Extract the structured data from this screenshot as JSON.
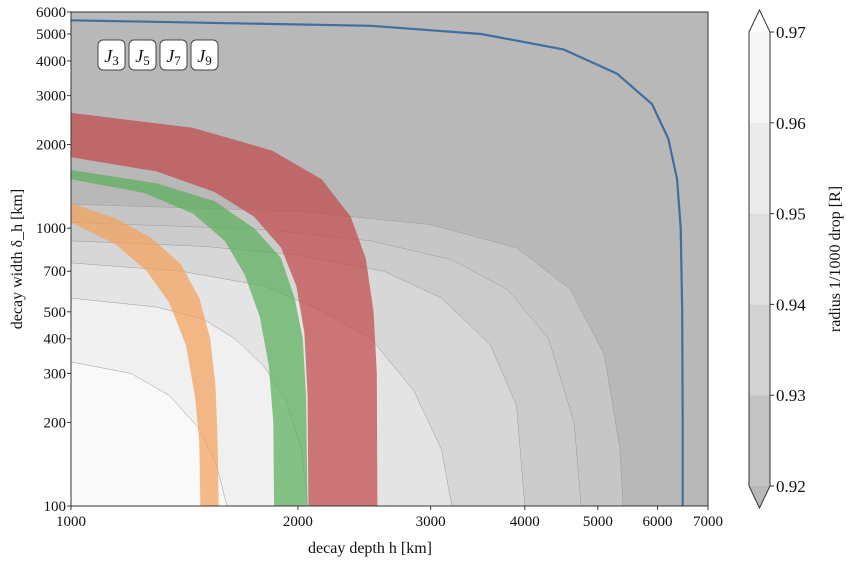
{
  "chart_data": {
    "type": "contour",
    "xlabel": "decay depth h [km]",
    "ylabel": "decay width δ_h [km]",
    "x_scale": "log",
    "y_scale": "log",
    "xlim": [
      1000,
      7000
    ],
    "ylim": [
      100,
      6000
    ],
    "x_ticks": [
      1000,
      2000,
      3000,
      4000,
      5000,
      6000,
      7000
    ],
    "y_ticks": [
      100,
      200,
      300,
      400,
      500,
      700,
      1000,
      2000,
      3000,
      4000,
      5000,
      6000
    ],
    "colorbar": {
      "label": "radius 1/1000 drop [R]",
      "levels": [
        0.92,
        0.93,
        0.94,
        0.95,
        0.96,
        0.97
      ],
      "ticks": [
        "0.92",
        "0.93",
        "0.94",
        "0.95",
        "0.96",
        "0.97"
      ],
      "colors": [
        "#c3c3c3",
        "#d2d2d2",
        "#dfdfdf",
        "#ebebeb",
        "#f6f6f6"
      ],
      "extend": "both",
      "extend_low_color": "#b8b8b8",
      "extend_high_color": "#ffffff"
    },
    "contour_fills": [
      {
        "color": "#f9f9f9",
        "points": [
          [
            1000,
            330
          ],
          [
            1200,
            300
          ],
          [
            1350,
            250
          ],
          [
            1480,
            190
          ],
          [
            1560,
            140
          ],
          [
            1610,
            100
          ]
        ]
      },
      {
        "color": "#f0f0f0",
        "points": [
          [
            1000,
            560
          ],
          [
            1300,
            520
          ],
          [
            1500,
            470
          ],
          [
            1650,
            400
          ],
          [
            1800,
            320
          ],
          [
            1930,
            240
          ],
          [
            2020,
            160
          ],
          [
            2060,
            100
          ]
        ]
      },
      {
        "color": "#e4e4e4",
        "points": [
          [
            1000,
            750
          ],
          [
            1400,
            700
          ],
          [
            1800,
            620
          ],
          [
            2100,
            520
          ],
          [
            2500,
            400
          ],
          [
            2850,
            260
          ],
          [
            3100,
            160
          ],
          [
            3200,
            100
          ]
        ]
      },
      {
        "color": "#d7d7d7",
        "points": [
          [
            1000,
            900
          ],
          [
            1500,
            860
          ],
          [
            2000,
            800
          ],
          [
            2600,
            700
          ],
          [
            3100,
            560
          ],
          [
            3600,
            380
          ],
          [
            3900,
            230
          ],
          [
            4000,
            100
          ]
        ]
      },
      {
        "color": "#cbcbcb",
        "points": [
          [
            1000,
            1050
          ],
          [
            1800,
            990
          ],
          [
            2500,
            900
          ],
          [
            3200,
            770
          ],
          [
            3800,
            600
          ],
          [
            4300,
            400
          ],
          [
            4650,
            200
          ],
          [
            4750,
            100
          ]
        ]
      },
      {
        "color": "#c6c6c6",
        "points": [
          [
            1000,
            1220
          ],
          [
            2000,
            1150
          ],
          [
            3000,
            1030
          ],
          [
            3900,
            850
          ],
          [
            4600,
            600
          ],
          [
            5100,
            350
          ],
          [
            5350,
            160
          ],
          [
            5400,
            100
          ]
        ]
      }
    ],
    "series": [
      {
        "name": "J3",
        "color": "#3d6fa0",
        "kind": "line",
        "points": [
          [
            1000,
            5600
          ],
          [
            2500,
            5350
          ],
          [
            3500,
            5000
          ],
          [
            4500,
            4400
          ],
          [
            5300,
            3600
          ],
          [
            5900,
            2800
          ],
          [
            6200,
            2100
          ],
          [
            6370,
            1500
          ],
          [
            6440,
            1000
          ],
          [
            6470,
            500
          ],
          [
            6480,
            200
          ],
          [
            6480,
            100
          ]
        ]
      },
      {
        "name": "J5",
        "color": "#f2a15a",
        "kind": "band",
        "outer": [
          [
            1000,
            1230
          ],
          [
            1150,
            1080
          ],
          [
            1280,
            920
          ],
          [
            1400,
            740
          ],
          [
            1480,
            560
          ],
          [
            1530,
            400
          ],
          [
            1555,
            270
          ],
          [
            1565,
            170
          ],
          [
            1570,
            100
          ]
        ],
        "inner": [
          [
            1000,
            1050
          ],
          [
            1150,
            870
          ],
          [
            1260,
            700
          ],
          [
            1350,
            540
          ],
          [
            1420,
            380
          ],
          [
            1460,
            250
          ],
          [
            1480,
            170
          ],
          [
            1485,
            100
          ]
        ]
      },
      {
        "name": "J7",
        "color": "#5aaf5a",
        "kind": "band",
        "outer": [
          [
            1000,
            1620
          ],
          [
            1300,
            1450
          ],
          [
            1550,
            1250
          ],
          [
            1750,
            1000
          ],
          [
            1900,
            780
          ],
          [
            1980,
            560
          ],
          [
            2030,
            400
          ],
          [
            2050,
            250
          ],
          [
            2060,
            100
          ]
        ],
        "inner": [
          [
            1000,
            1500
          ],
          [
            1250,
            1340
          ],
          [
            1450,
            1130
          ],
          [
            1600,
            900
          ],
          [
            1700,
            680
          ],
          [
            1780,
            480
          ],
          [
            1830,
            320
          ],
          [
            1855,
            200
          ],
          [
            1860,
            100
          ]
        ]
      },
      {
        "name": "J9",
        "color": "#c0494b",
        "kind": "band",
        "outer": [
          [
            1000,
            2600
          ],
          [
            1450,
            2300
          ],
          [
            1850,
            1900
          ],
          [
            2150,
            1500
          ],
          [
            2350,
            1100
          ],
          [
            2460,
            780
          ],
          [
            2520,
            500
          ],
          [
            2545,
            300
          ],
          [
            2550,
            100
          ]
        ],
        "inner": [
          [
            1000,
            1800
          ],
          [
            1300,
            1600
          ],
          [
            1550,
            1350
          ],
          [
            1750,
            1100
          ],
          [
            1900,
            850
          ],
          [
            1990,
            620
          ],
          [
            2040,
            420
          ],
          [
            2060,
            250
          ],
          [
            2065,
            100
          ]
        ]
      }
    ],
    "legend": {
      "position": "top-left",
      "entries": [
        "J3",
        "J5",
        "J7",
        "J9"
      ]
    }
  }
}
